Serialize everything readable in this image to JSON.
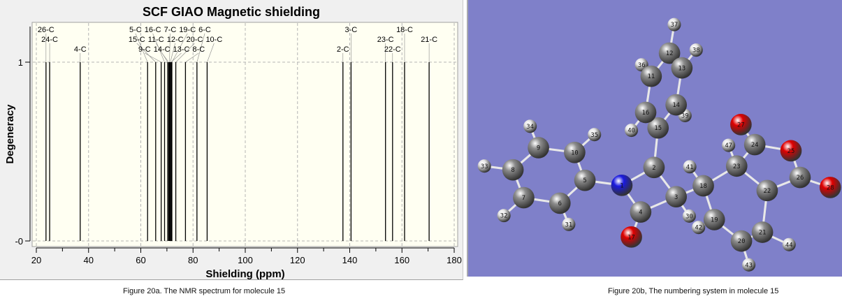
{
  "chart_data": {
    "type": "bar",
    "title": "SCF GIAO Magnetic shielding",
    "xlabel": "Shielding (ppm)",
    "ylabel": "Degeneracy",
    "xlim": [
      20,
      180
    ],
    "ylim": [
      0,
      1.22
    ],
    "xticks": [
      "20",
      "40",
      "60",
      "80",
      "100",
      "120",
      "140",
      "160",
      "180"
    ],
    "yticks": [
      "-0",
      "1"
    ],
    "grid": true,
    "peaks": [
      {
        "label": "26-C",
        "x": 23.7,
        "y": 1
      },
      {
        "label": "24-C",
        "x": 25.1,
        "y": 1
      },
      {
        "label": "4-C",
        "x": 36.8,
        "y": 1
      },
      {
        "label": "5-C",
        "x": 62.6,
        "y": 1
      },
      {
        "label": "15-C",
        "x": 65.7,
        "y": 1
      },
      {
        "label": "9-C",
        "x": 67.8,
        "y": 1
      },
      {
        "label": "16-C",
        "x": 69.1,
        "y": 1
      },
      {
        "label": "11-C",
        "x": 70.3,
        "y": 1
      },
      {
        "label": "14-C",
        "x": 70.7,
        "y": 1
      },
      {
        "label": "7-C",
        "x": 71.0,
        "y": 1
      },
      {
        "label": "12-C",
        "x": 71.3,
        "y": 1
      },
      {
        "label": "13-C",
        "x": 71.6,
        "y": 1
      },
      {
        "label": "19-C",
        "x": 71.9,
        "y": 1
      },
      {
        "label": "20-C",
        "x": 73.4,
        "y": 1
      },
      {
        "label": "8-C",
        "x": 77.1,
        "y": 1
      },
      {
        "label": "6-C",
        "x": 81.5,
        "y": 1
      },
      {
        "label": "10-C",
        "x": 85.4,
        "y": 1
      },
      {
        "label": "2-C",
        "x": 137.4,
        "y": 1
      },
      {
        "label": "3-C",
        "x": 140.5,
        "y": 1
      },
      {
        "label": "23-C",
        "x": 153.7,
        "y": 1
      },
      {
        "label": "22-C",
        "x": 156.4,
        "y": 1
      },
      {
        "label": "18-C",
        "x": 161.0,
        "y": 1
      },
      {
        "label": "21-C",
        "x": 170.4,
        "y": 1
      }
    ],
    "colors": {
      "panel": "#f0f0f0",
      "plot_bg": "#fffff2",
      "line": "#000000",
      "grid": "#b4b4b4"
    }
  },
  "molecule": {
    "background": "#7f80c9",
    "element_colors": {
      "C": "#8c8c8c",
      "N": "#1a1ae0",
      "O": "#e00000",
      "H": "#e6e6e6"
    },
    "atoms": [
      {
        "label": "1",
        "el": "N"
      },
      {
        "label": "2",
        "el": "C"
      },
      {
        "label": "3",
        "el": "C"
      },
      {
        "label": "4",
        "el": "C"
      },
      {
        "label": "5",
        "el": "C"
      },
      {
        "label": "6",
        "el": "C"
      },
      {
        "label": "7",
        "el": "C"
      },
      {
        "label": "8",
        "el": "C"
      },
      {
        "label": "9",
        "el": "C"
      },
      {
        "label": "10",
        "el": "C"
      },
      {
        "label": "11",
        "el": "C"
      },
      {
        "label": "12",
        "el": "C"
      },
      {
        "label": "13",
        "el": "C"
      },
      {
        "label": "14",
        "el": "C"
      },
      {
        "label": "15",
        "el": "C"
      },
      {
        "label": "16",
        "el": "C"
      },
      {
        "label": "17",
        "el": "O"
      },
      {
        "label": "18",
        "el": "C"
      },
      {
        "label": "19",
        "el": "C"
      },
      {
        "label": "20",
        "el": "C"
      },
      {
        "label": "21",
        "el": "C"
      },
      {
        "label": "22",
        "el": "C"
      },
      {
        "label": "23",
        "el": "C"
      },
      {
        "label": "24",
        "el": "C"
      },
      {
        "label": "25",
        "el": "O"
      },
      {
        "label": "26",
        "el": "C"
      },
      {
        "label": "27",
        "el": "O"
      },
      {
        "label": "28",
        "el": "O"
      },
      {
        "label": "30",
        "el": "H"
      },
      {
        "label": "31",
        "el": "H"
      },
      {
        "label": "32",
        "el": "H"
      },
      {
        "label": "33",
        "el": "H"
      },
      {
        "label": "34",
        "el": "H"
      },
      {
        "label": "35",
        "el": "H"
      },
      {
        "label": "36",
        "el": "H"
      },
      {
        "label": "37",
        "el": "H"
      },
      {
        "label": "38",
        "el": "H"
      },
      {
        "label": "39",
        "el": "H"
      },
      {
        "label": "40",
        "el": "H"
      },
      {
        "label": "41",
        "el": "H"
      },
      {
        "label": "42",
        "el": "H"
      },
      {
        "label": "43",
        "el": "H"
      },
      {
        "label": "44",
        "el": "H"
      },
      {
        "label": "47",
        "el": "H"
      }
    ]
  },
  "captions": {
    "left": "Figure 20a. The NMR spectrum for molecule 15",
    "right": "Figure 20b, The numbering system in molecule 15"
  }
}
